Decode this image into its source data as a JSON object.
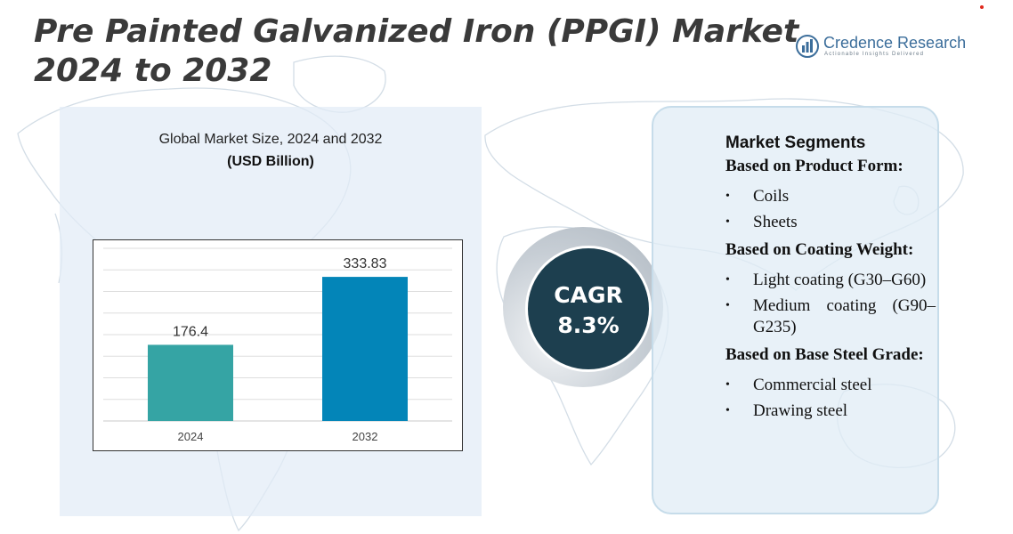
{
  "title": "Pre Painted Galvanized Iron (PPGI) Market 2024 to 2032",
  "logo": {
    "name": "Credence Research",
    "tagline": "Actionable Insights Delivered"
  },
  "colors": {
    "bar_2024": "#35a4a4",
    "bar_2032": "#0385b8",
    "cagr_circle": "#1d3f4f",
    "title_text": "#3a3a3a"
  },
  "chart_data": {
    "type": "bar",
    "title": "Global Market Size, 2024 and 2032",
    "subtitle": "(USD Billion)",
    "categories": [
      "2024",
      "2032"
    ],
    "values": [
      176.4,
      333.83
    ],
    "data_labels": [
      "176.4",
      "333.83"
    ],
    "ylim": [
      0,
      400
    ],
    "grid": true,
    "legend": "none"
  },
  "cagr": {
    "label": "CAGR",
    "value": "8.3%"
  },
  "segments": {
    "title": "Market Segments",
    "groups": [
      {
        "heading": "Based on Product Form:",
        "items": [
          "Coils",
          "Sheets"
        ]
      },
      {
        "heading": "Based on Coating Weight:",
        "items": [
          "Light coating (G30–G60)",
          "Medium coating (G90–G235)"
        ]
      },
      {
        "heading": "Based on Base Steel Grade:",
        "items": [
          "Commercial steel",
          "Drawing steel"
        ]
      }
    ]
  },
  "icons": {
    "bullet": "•",
    "logo_mark": "bar-chart-globe-icon"
  }
}
